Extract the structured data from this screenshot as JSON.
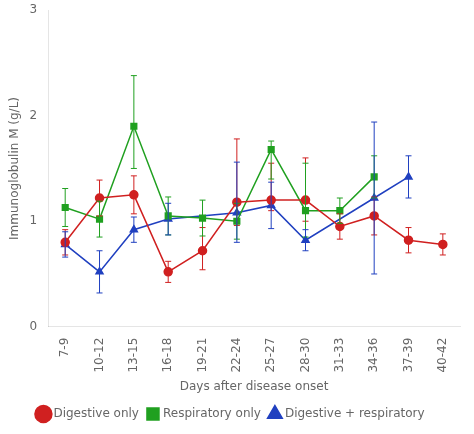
{
  "chart_data": {
    "type": "line",
    "xlabel": "Days after disease onset",
    "ylabel": "Immunoglobulin M (g/L)",
    "categories": [
      "7-9",
      "10-12",
      "13-15",
      "16-18",
      "19-21",
      "22-24",
      "25-27",
      "28-30",
      "31-33",
      "34-36",
      "37-39",
      "40-42"
    ],
    "series": [
      {
        "name": "Digestive only",
        "color": "#d02020",
        "marker": "circle",
        "values": [
          0.8,
          1.22,
          1.25,
          0.52,
          0.72,
          1.18,
          1.2,
          1.2,
          0.95,
          1.05,
          0.82,
          0.78
        ],
        "error_lo": [
          0.12,
          0.17,
          0.18,
          0.1,
          0.18,
          0.22,
          0.1,
          0.2,
          0.12,
          0.18,
          0.12,
          0.1
        ],
        "error_hi": [
          0.12,
          0.17,
          0.18,
          0.1,
          0.22,
          0.6,
          0.35,
          0.4,
          0.12,
          0.18,
          0.12,
          0.1
        ]
      },
      {
        "name": "Respiratory only",
        "color": "#20a020",
        "marker": "square",
        "values": [
          1.13,
          1.02,
          1.9,
          1.05,
          1.03,
          1.0,
          1.68,
          1.1,
          1.1,
          1.42,
          null,
          null
        ],
        "error_lo": [
          0.18,
          0.17,
          0.4,
          0.18,
          0.17,
          0.17,
          0.28,
          0.25,
          0.12,
          0.2,
          null,
          null
        ],
        "error_hi": [
          0.18,
          0.17,
          0.48,
          0.18,
          0.17,
          0.17,
          0.08,
          0.45,
          0.12,
          0.2,
          null,
          null
        ]
      },
      {
        "name": "Digestive + respiratory",
        "color": "#2040c0",
        "marker": "triangle",
        "values": [
          0.78,
          0.52,
          0.92,
          1.02,
          null,
          1.08,
          1.15,
          0.82,
          null,
          1.22,
          1.42,
          null
        ],
        "error_lo": [
          0.12,
          0.2,
          0.12,
          0.15,
          null,
          0.28,
          0.22,
          0.1,
          null,
          0.72,
          0.2,
          null
        ],
        "error_hi": [
          0.12,
          0.2,
          0.12,
          0.15,
          null,
          0.48,
          0.22,
          0.1,
          null,
          0.72,
          0.2,
          null
        ]
      }
    ],
    "ylim": [
      0,
      3
    ],
    "yticks": [
      0,
      1,
      2,
      3
    ],
    "grid": false,
    "legend": "bottom"
  }
}
